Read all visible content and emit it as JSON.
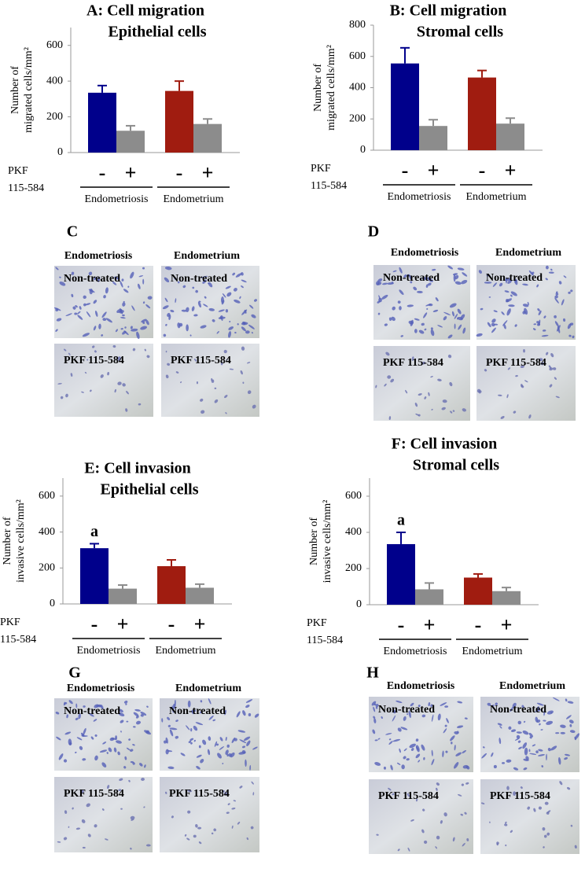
{
  "chart_data": [
    {
      "type": "bar",
      "title": "A: Cell migration",
      "subtitle": "Epithelial cells",
      "ylabel": [
        "Number of",
        "migrated cells/mm²"
      ],
      "treatment_label": [
        "PKF",
        "115-584"
      ],
      "groups": [
        "Endometriosis",
        "Endometrium"
      ],
      "categories": [
        "-",
        "+",
        "-",
        "+"
      ],
      "values": [
        335,
        122,
        345,
        160
      ],
      "errors": [
        40,
        28,
        55,
        28
      ],
      "colors": [
        "#00008b",
        "#8c8c8c",
        "#a01c10",
        "#8c8c8c"
      ],
      "bar_labels": [
        null,
        null,
        null,
        null
      ],
      "ylim": [
        0,
        700
      ],
      "yticks": [
        0,
        200,
        400,
        600
      ]
    },
    {
      "type": "bar",
      "title": "B: Cell migration",
      "subtitle": "Stromal cells",
      "ylabel": [
        "Number of",
        "migrated cells/mm²"
      ],
      "treatment_label": [
        "PKF",
        "115-584"
      ],
      "groups": [
        "Endometriosis",
        "Endometrium"
      ],
      "categories": [
        "-",
        "+",
        "-",
        "+"
      ],
      "values": [
        555,
        155,
        465,
        170
      ],
      "errors": [
        100,
        40,
        45,
        35
      ],
      "colors": [
        "#00008b",
        "#8c8c8c",
        "#a01c10",
        "#8c8c8c"
      ],
      "bar_labels": [
        null,
        null,
        null,
        null
      ],
      "ylim": [
        0,
        800
      ],
      "yticks": [
        0,
        200,
        400,
        600,
        800
      ]
    },
    {
      "type": "bar",
      "title": "E: Cell invasion",
      "subtitle": "Epithelial cells",
      "ylabel": [
        "Number of",
        "invasive cells/mm²"
      ],
      "treatment_label": [
        "PKF",
        "115-584"
      ],
      "groups": [
        "Endometriosis",
        "Endometrium"
      ],
      "categories": [
        "-",
        "+",
        "-",
        "+"
      ],
      "values": [
        310,
        85,
        210,
        90
      ],
      "errors": [
        25,
        20,
        35,
        20
      ],
      "colors": [
        "#00008b",
        "#8c8c8c",
        "#a01c10",
        "#8c8c8c"
      ],
      "bar_labels": [
        "a",
        null,
        null,
        null
      ],
      "ylim": [
        0,
        700
      ],
      "yticks": [
        0,
        200,
        400,
        600
      ]
    },
    {
      "type": "bar",
      "title": "F: Cell invasion",
      "subtitle": "Stromal cells",
      "ylabel": [
        "Number of",
        "invasive cells/mm²"
      ],
      "treatment_label": [
        "PKF",
        "115-584"
      ],
      "groups": [
        "Endometriosis",
        "Endometrium"
      ],
      "categories": [
        "-",
        "+",
        "-",
        "+"
      ],
      "values": [
        335,
        85,
        150,
        75
      ],
      "errors": [
        65,
        35,
        20,
        20
      ],
      "colors": [
        "#00008b",
        "#8c8c8c",
        "#a01c10",
        "#8c8c8c"
      ],
      "bar_labels": [
        "a",
        null,
        null,
        null
      ],
      "ylim": [
        0,
        700
      ],
      "yticks": [
        0,
        200,
        400,
        600
      ]
    }
  ],
  "image_panels": [
    {
      "letter": "C",
      "columns": [
        "Endometriosis",
        "Endometrium"
      ],
      "rows": [
        "Non-treated",
        "PKF 115-584"
      ]
    },
    {
      "letter": "D",
      "columns": [
        "Endometriosis",
        "Endometrium"
      ],
      "rows": [
        "Non-treated",
        "PKF 115-584"
      ]
    },
    {
      "letter": "G",
      "columns": [
        "Endometriosis",
        "Endometrium"
      ],
      "rows": [
        "Non-treated",
        "PKF 115-584"
      ]
    },
    {
      "letter": "H",
      "columns": [
        "Endometriosis",
        "Endometrium"
      ],
      "rows": [
        "Non-treated",
        "PKF 115-584"
      ]
    }
  ]
}
